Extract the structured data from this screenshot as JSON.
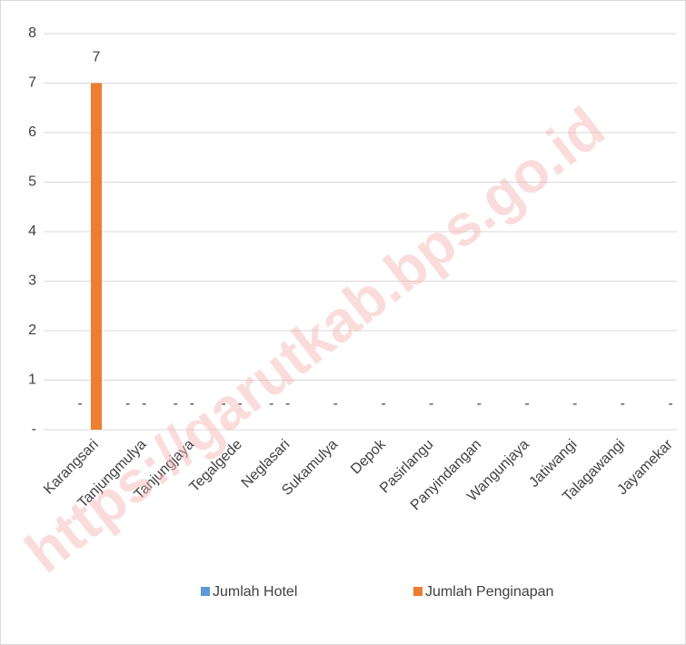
{
  "chart_data": {
    "type": "bar",
    "categories": [
      "Karangsari",
      "Tanjungmulya",
      "Tanjungjaya",
      "Tegalgede",
      "Neglasari",
      "Sukamulya",
      "Depok",
      "Pasirlangu",
      "Panyindangan",
      "Wangunjaya",
      "Jatiwangi",
      "Talagawangi",
      "Jayamekar"
    ],
    "series": [
      {
        "name": "Jumlah Hotel",
        "color": "#5b9bd5",
        "values": [
          0,
          0,
          0,
          0,
          0,
          0,
          0,
          0,
          0,
          0,
          0,
          0,
          0
        ],
        "value_labels": [
          "-",
          "-",
          "-",
          "-",
          "-",
          null,
          null,
          null,
          null,
          null,
          null,
          null,
          null
        ]
      },
      {
        "name": "Jumlah Penginapan",
        "color": "#ed7d31",
        "values": [
          7,
          0,
          0,
          0,
          0,
          0,
          0,
          0,
          0,
          0,
          0,
          0,
          0
        ],
        "value_labels": [
          "7",
          "-",
          "-",
          "-",
          "-",
          "-",
          "-",
          "-",
          "-",
          "-",
          "-",
          "-",
          "-"
        ]
      }
    ],
    "ylim": [
      0,
      8
    ],
    "yticks": [
      {
        "value": 0,
        "label": "-"
      },
      1,
      2,
      3,
      4,
      5,
      6,
      7,
      8
    ],
    "grid": true,
    "legend": "bottom",
    "watermark": "https://garutkab.bps.go.id"
  }
}
